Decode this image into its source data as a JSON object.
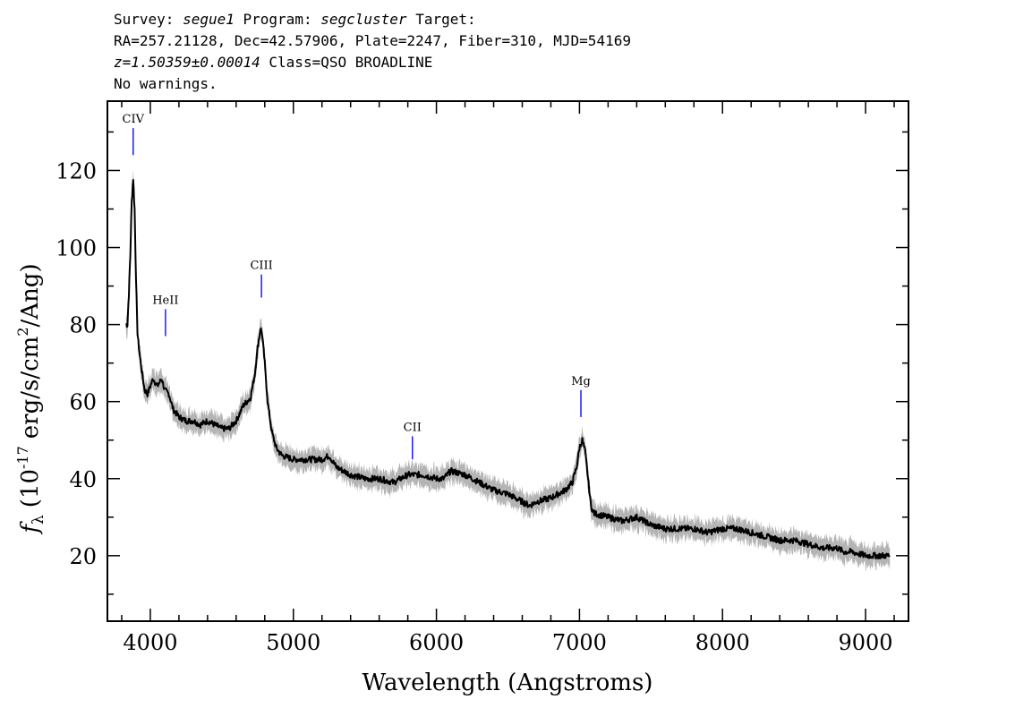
{
  "header": {
    "survey_label": "Survey:",
    "survey": "segue1",
    "program_label": "Program:",
    "program": "segcluster",
    "target_label": "Target:",
    "coords": "RA=257.21128, Dec=42.57906, Plate=2247, Fiber=310, MJD=54169",
    "redshift": "z=1.50359±0.00014",
    "class": "Class=QSO BROADLINE",
    "warnings": "No warnings."
  },
  "colors": {
    "flux": "#000000",
    "error_band": "#b4b4b4",
    "line_marker": "#1a1aff"
  },
  "chart_data": {
    "type": "line",
    "xlabel": "Wavelength (Angstroms)",
    "ylabel_prefix": "f",
    "ylabel_sub": "λ",
    "ylabel_rest": "(10",
    "ylabel_exp": "-17",
    "ylabel_units": "erg/s/cm",
    "ylabel_units_exp": "2",
    "ylabel_end": "/Ang)",
    "xlim": [
      3700,
      9300
    ],
    "ylim": [
      3,
      138
    ],
    "xticks": [
      4000,
      5000,
      6000,
      7000,
      8000,
      9000
    ],
    "yticks": [
      20,
      40,
      60,
      80,
      100,
      120
    ],
    "grid": false,
    "series": [
      {
        "x": [
          3830,
          3840,
          3850,
          3860,
          3870,
          3880,
          3890,
          3900,
          3910,
          3920,
          3940,
          3960,
          3980,
          4000,
          4020,
          4050,
          4080,
          4100,
          4130,
          4160,
          4200,
          4250,
          4300,
          4350,
          4400,
          4450,
          4500,
          4550,
          4600,
          4650,
          4700,
          4730,
          4750,
          4770,
          4780,
          4800,
          4820,
          4850,
          4880,
          4920,
          5000,
          5100,
          5200,
          5250,
          5300,
          5400,
          5500,
          5600,
          5700,
          5800,
          5900,
          6000,
          6050,
          6100,
          6200,
          6300,
          6400,
          6500,
          6600,
          6650,
          6700,
          6800,
          6900,
          6950,
          6980,
          7000,
          7020,
          7040,
          7060,
          7080,
          7100,
          7200,
          7300,
          7400,
          7500,
          7600,
          7700,
          7800,
          7900,
          8000,
          8100,
          8200,
          8300,
          8400,
          8500,
          8600,
          8700,
          8800,
          8850,
          8900,
          9000,
          9100,
          9170
        ],
        "y": [
          80,
          80,
          88,
          98,
          112,
          118,
          110,
          92,
          78,
          74,
          68,
          63,
          62,
          64,
          66,
          64,
          66,
          63,
          62,
          58,
          56,
          55,
          55,
          54,
          55,
          54,
          53,
          53,
          55,
          59,
          61,
          67,
          74,
          79,
          78,
          70,
          60,
          52,
          48,
          46,
          45,
          45,
          45,
          46,
          43,
          41,
          40,
          40,
          39,
          41,
          41,
          40,
          40,
          42,
          41,
          39,
          37,
          36,
          34,
          33,
          34,
          35,
          37,
          39,
          43,
          48,
          50,
          47,
          40,
          33,
          31,
          30,
          29,
          30,
          28,
          27,
          27,
          27,
          26,
          27,
          27,
          26,
          25,
          24,
          24,
          23,
          22,
          22,
          21,
          21,
          20,
          20,
          20
        ]
      }
    ],
    "lines": [
      {
        "label": "CIV",
        "x": 3880,
        "y_bottom": 124,
        "y_top": 131
      },
      {
        "label": "HeII",
        "x": 4106,
        "y_bottom": 77,
        "y_top": 84
      },
      {
        "label": "CIII",
        "x": 4777,
        "y_bottom": 87,
        "y_top": 93
      },
      {
        "label": "CII",
        "x": 5832,
        "y_bottom": 45,
        "y_top": 51
      },
      {
        "label": "Mg",
        "x": 7010,
        "y_bottom": 56,
        "y_top": 63
      }
    ]
  }
}
